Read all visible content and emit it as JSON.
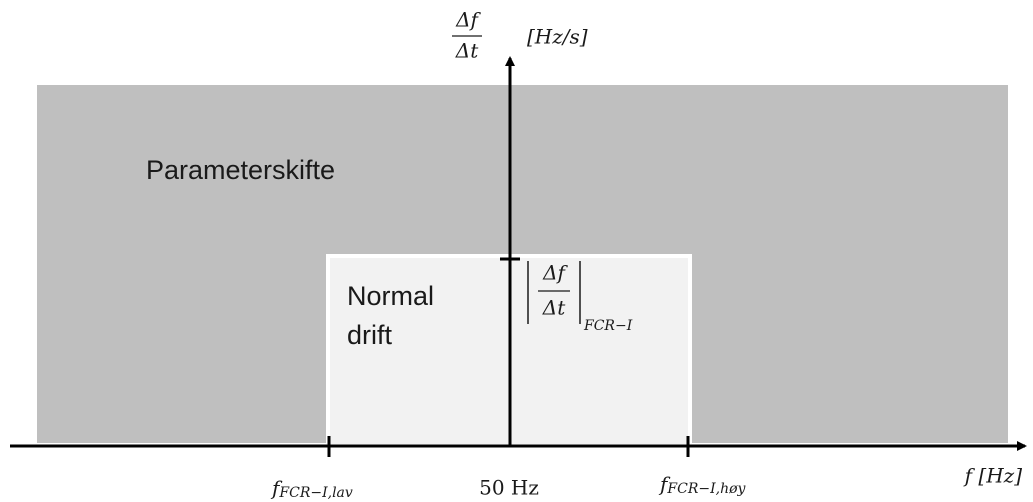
{
  "y_axis": {
    "numerator": "Δf",
    "denominator": "Δt",
    "unit": "[Hz/s]"
  },
  "regions": {
    "outer": "Parameterskifte",
    "inner": [
      "Normal",
      "drift"
    ]
  },
  "threshold": {
    "numerator": "Δf",
    "denominator": "Δt",
    "subscript": "FCR−I"
  },
  "x_labels": {
    "low": {
      "main": "f",
      "sub": "FCR−I,lav"
    },
    "center": "50 Hz",
    "high": {
      "main": "f",
      "sub": "FCR−I,høy"
    },
    "axis": "f [Hz]"
  }
}
